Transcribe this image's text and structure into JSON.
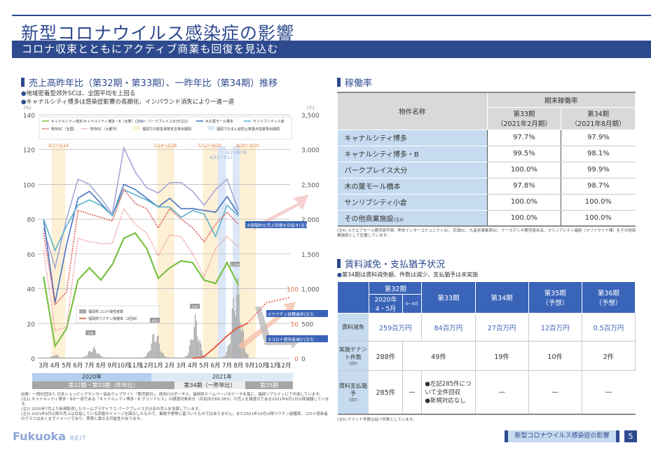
{
  "header": {
    "title": "新型コロナウイルス感染症の影響",
    "subtitle": "コロナ収束とともにアクティブ商業も回復を見込む"
  },
  "sales_section": {
    "heading": "売上高昨年比（第32期・第33期）、一昨年比（第34期）推移",
    "bullets": [
      "地域密着型郊外SCは、全国平均を上回る",
      "キャナルシティ博多は感染症影響の長期化、インバウンド消失により一進一退"
    ],
    "year_labels": [
      "2020年",
      "2021年"
    ],
    "period_labels": [
      "第32期・第33期（昨年比）",
      "第34期（一昨年比）",
      "第35期"
    ],
    "notes": [
      "出典：一般社団法人 日本ショッピングセンター協会ウェブサイト「販売統計」、政府CIOポータル、福岡県ホームページのデータを基に、福岡リアルティにて作成しています。",
      "(注1) キャナルシティ博多・Bの一部である「キャナルシティ博多・B グランドビル」の譲渡対象部分（共有持分69.28%）の売上を譲渡日である2021年6月1日以降減額しています。",
      "(注2) 2020年7月より新規取得したホームプラザナフコ パークプレイス大分店の売上を加算しています。",
      "(注3) 2021年9月以降の売上は目指している回復のイメージを図示したもので、業績予想等に基づいたものではありません。また2021年10月以降ワクチン接種率、コロナ感染者のグラフはあくまでイメージであり、実際と異なる可能性があります。"
    ]
  },
  "chart_data": {
    "type": "line",
    "title": "売上高昨年比（第32期・第33期）、一昨年比（第34期）推移",
    "xlabel": "",
    "ylabel": "(%)",
    "ylabel_right": "(人)",
    "ylim": [
      0,
      140
    ],
    "ylim_right": [
      0,
      3500
    ],
    "yticks": [
      0,
      20,
      40,
      60,
      80,
      100,
      120,
      140
    ],
    "yticks_right": [
      0,
      500,
      1000,
      1500,
      2000,
      2500,
      3000,
      3500
    ],
    "vaccine_axis_ticks": [
      0,
      50,
      100
    ],
    "categories": [
      "3月",
      "4月",
      "5月",
      "6月",
      "7月",
      "8月",
      "9月",
      "10月",
      "11月",
      "12月",
      "1月",
      "2月",
      "3月",
      "4月",
      "5月",
      "6月",
      "7月",
      "8月",
      "9月",
      "10月",
      "11月",
      "12月"
    ],
    "series": [
      {
        "name": "キャナルシティ博多/キャナルシティ博多・B（合算）(注1)",
        "color": "#7ac143",
        "values": [
          47,
          7,
          17,
          45,
          52,
          45,
          54,
          69,
          72,
          63,
          46,
          52,
          56,
          55,
          45,
          43,
          55,
          42,
          null,
          null,
          null,
          null
        ]
      },
      {
        "name": "パークプレイス大分(注2)",
        "color": "#a6a6d8",
        "values": [
          75,
          52,
          80,
          103,
          100,
          92,
          83,
          121,
          107,
          98,
          95,
          101,
          101,
          96,
          88,
          97,
          103,
          85,
          null,
          null,
          null,
          null
        ]
      },
      {
        "name": "木の葉モール橋本",
        "color": "#4a74c0",
        "values": [
          80,
          32,
          65,
          92,
          96,
          89,
          82,
          100,
          97,
          92,
          87,
          92,
          86,
          86,
          85,
          84,
          93,
          83,
          null,
          null,
          null,
          null
        ]
      },
      {
        "name": "サンリブシティ小倉",
        "color": "#5bb3c8",
        "values": [
          80,
          62,
          76,
          88,
          91,
          88,
          82,
          97,
          94,
          91,
          87,
          87,
          81,
          85,
          83,
          70,
          88,
          82,
          null,
          null,
          null,
          null
        ]
      },
      {
        "name": "既存SC（全国）",
        "color": "#e05a5a",
        "values": [
          72,
          31,
          38,
          85,
          83,
          81,
          79,
          97,
          89,
          86,
          75,
          86,
          80,
          75,
          67,
          77,
          84,
          77,
          null,
          null,
          null,
          null
        ]
      },
      {
        "name": "既存SC（大都市）",
        "color": "#f0a0a0",
        "values": [
          62,
          16,
          18,
          69,
          67,
          66,
          66,
          86,
          77,
          72,
          59,
          71,
          70,
          60,
          47,
          63,
          70,
          64,
          null,
          null,
          null,
          null
        ]
      }
    ],
    "histogram": {
      "name": "福岡県コロナ陽性者数",
      "axis": "right",
      "peak_labels": [
        "166",
        "401",
        "534",
        "1,199"
      ]
    },
    "vaccine_line": {
      "name": "福岡県ワクチン接種率（2回目）",
      "axis": "vaccine (%)",
      "values_from_may_2021": [
        0,
        2,
        15,
        30,
        43,
        50
      ]
    },
    "shaded_periods": [
      {
        "label": "4/7〜5/14",
        "type": "緊急事態宣言"
      },
      {
        "label": "1/14〜2/28",
        "type": "緊急事態宣言"
      },
      {
        "label": "5/12〜6/20",
        "type": "緊急事態宣言"
      },
      {
        "label": "6/21〜7/11",
        "type": "まん延防止等重点措置"
      },
      {
        "label": "8/2〜8/19",
        "type": "まん延防止等重点措置"
      },
      {
        "label": "8/20〜9/30",
        "type": "緊急事態宣言"
      }
    ],
    "legend": [
      "キャナルシティ博多/キャナルシティ博多・B（合算）(注1)",
      "パークプレイス大分(注2)",
      "木の葉モール橋本",
      "サンリブシティ小倉",
      "既存SC（全国）",
      "既存SC（大都市）",
      "福岡での緊急事態宣言発出期間",
      "福岡でのまん延防止等重点措置発出期間"
    ],
    "annotations": [
      "③段階的な売上回復を目指す(注3)",
      "①ワクチン接種進捗(注3)",
      "②コロナ感染者減少(注3)"
    ]
  },
  "occupancy": {
    "heading": "稼働率",
    "col_name": "物件名称",
    "col_group": "期末稼働率",
    "col_33": "第33期",
    "col_33_sub": "（2021年2月期）",
    "col_34": "第34期",
    "col_34_sub": "（2021年8月期）",
    "rows": [
      {
        "name": "キャナルシティ博多",
        "p33": "97.7%",
        "p34": "97.9%"
      },
      {
        "name": "キャナルシティ博多・B",
        "p33": "99.5%",
        "p34": "98.1%"
      },
      {
        "name": "パークプレイス大分",
        "p33": "100.0%",
        "p34": "99.9%"
      },
      {
        "name": "木の葉モール橋本",
        "p33": "97.8%",
        "p34": "98.7%"
      },
      {
        "name": "サンリブシティ小倉",
        "p33": "100.0%",
        "p34": "100.0%"
      },
      {
        "name": "その他商業施設",
        "note": "(注4)",
        "p33": "100.0%",
        "p34": "100.0%"
      }
    ],
    "note": "(注4) スクエアモール鹿児島宇宿、熊本インターコミュニティSC、花畑SC、久留米東櫛原SC、ケーズデンキ鹿児島本店、マリノアシティ福岡（マリナサイド棟）をその他商業施設として記載しています。"
  },
  "rent": {
    "heading": "賃料減免・支払猶予状況",
    "bullet": "第34期は賃料減免額、件数は減少、支払猶予は未実施",
    "headers": {
      "p32": "第32期",
      "p32a": "2020年 4・5月",
      "p32b": "6〜8月",
      "p33": "第33期",
      "p34": "第34期",
      "p35": "第35期",
      "p35_sub": "（予想）",
      "p36": "第36期",
      "p36_sub": "（予想）"
    },
    "row_reduction": {
      "label": "賃料減免",
      "p32": "259百万円",
      "p33": "84百万円",
      "p34": "27百万円",
      "p35": "12百万円",
      "p36": "0.5百万円"
    },
    "row_tenants": {
      "label": "実施テナント件数",
      "note": "(注5)",
      "p32": "288件",
      "p33": "49件",
      "p34": "19件",
      "p35": "10件",
      "p36": "2件"
    },
    "row_deferral": {
      "label": "賃料支払猶予",
      "note": "(注5)",
      "p32a": "285件",
      "p32b": "—",
      "p33_line1": "●左記285件について全件回収",
      "p33_line2": "●新規対応なし",
      "p34": "—",
      "p35": "—",
      "p36": "—"
    },
    "note": "(注5) テナント件数は延べ件数としています。"
  },
  "footer": {
    "logo_main": "Fukuoka",
    "logo_sub": "REIT",
    "tag": "新型コロナウイルス感染症の影響",
    "page": "5"
  },
  "colors": {
    "brand_navy": "#2e4a8f",
    "table_blue": "#3a64b8",
    "light_blue": "#c6dbef"
  }
}
